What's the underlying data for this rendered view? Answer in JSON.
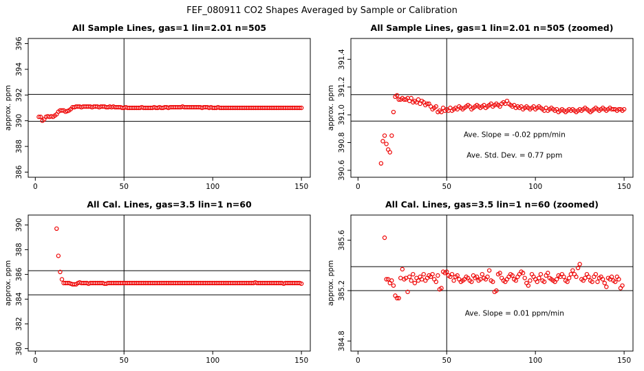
{
  "figure": {
    "title": "FEF_080911  CO2 Shapes Averaged by Sample or Calibration"
  },
  "colors": {
    "points": "#ee0000",
    "lines": "#000000",
    "frame": "#000000"
  },
  "chart_data": [
    {
      "type": "scatter",
      "title": "All Sample Lines, gas=1 lin=2.01 n=505",
      "ylabel": "approx. ppm",
      "xlim": [
        -4,
        155
      ],
      "ylim": [
        385.6,
        396.4
      ],
      "xticks": [
        0,
        50,
        100,
        150
      ],
      "yticks": [
        386,
        388,
        390,
        392,
        394,
        396
      ],
      "hlines": [
        389.95,
        392.05
      ],
      "vline": 50,
      "annotations": [],
      "x_start": 2,
      "x_step": 1,
      "values": [
        390.3,
        390.3,
        390.0,
        390.1,
        390.3,
        390.35,
        390.3,
        390.35,
        390.3,
        390.4,
        390.5,
        390.7,
        390.8,
        390.8,
        390.8,
        390.7,
        390.75,
        390.8,
        390.9,
        391.05,
        391.05,
        391.1,
        391.1,
        391.1,
        391.05,
        391.1,
        391.1,
        391.1,
        391.1,
        391.1,
        391.05,
        391.1,
        391.1,
        391.1,
        391.05,
        391.1,
        391.1,
        391.1,
        391.05,
        391.05,
        391.1,
        391.05,
        391.1,
        391.05,
        391.05,
        391.05,
        391.05,
        391.0,
        391.0,
        391.05,
        391.0,
        391.0,
        391.0,
        391.0,
        391.0,
        391.0,
        391.0,
        391.0,
        391.05,
        391.0,
        391.0,
        391.0,
        391.0,
        391.0,
        391.0,
        391.05,
        391.0,
        391.0,
        391.05,
        391.0,
        391.0,
        391.05,
        391.05,
        391.0,
        391.05,
        391.05,
        391.05,
        391.05,
        391.05,
        391.05,
        391.05,
        391.1,
        391.05,
        391.05,
        391.05,
        391.05,
        391.05,
        391.05,
        391.05,
        391.05,
        391.05,
        391.05,
        391.0,
        391.05,
        391.05,
        391.05,
        391.0,
        391.05,
        391.0,
        391.0,
        391.0,
        391.05,
        391.0,
        391.0,
        391.0,
        391.0,
        391.0,
        391.0,
        391.0,
        391.0,
        391.0,
        391.0,
        391.0,
        391.0,
        391.0,
        391.0,
        391.0,
        391.0,
        391.0,
        391.0,
        391.0,
        391.0,
        391.0,
        391.0,
        391.0,
        391.0,
        391.0,
        391.0,
        391.0,
        391.0,
        391.0,
        391.0,
        391.0,
        391.0,
        391.0,
        391.0,
        391.0,
        391.0,
        391.0,
        391.0,
        391.0,
        391.0,
        391.0,
        391.0,
        391.0,
        391.0,
        391.0,
        391.0,
        391.0
      ]
    },
    {
      "type": "scatter",
      "title": "All Sample Lines, gas=1 lin=2.01 n=505 (zoomed)",
      "ylabel": "approx. ppm",
      "xlim": [
        -4,
        155
      ],
      "ylim": [
        390.55,
        391.55
      ],
      "xticks": [
        0,
        50,
        100,
        150
      ],
      "yticks": [
        390.6,
        390.8,
        391.0,
        391.2,
        391.4
      ],
      "hlines": [
        390.955,
        391.145
      ],
      "vline": 50,
      "annotations": [
        "Ave. Slope =  -0.02  ppm/min",
        "Ave. Std. Dev. =  0.77  ppm"
      ],
      "x_start": 13,
      "x_step": 1,
      "values": [
        390.65,
        390.81,
        390.85,
        390.79,
        390.75,
        390.73,
        390.85,
        391.02,
        391.13,
        391.14,
        391.11,
        391.11,
        391.12,
        391.11,
        391.11,
        391.12,
        391.1,
        391.12,
        391.09,
        391.1,
        391.09,
        391.11,
        391.08,
        391.1,
        391.09,
        391.07,
        391.08,
        391.08,
        391.06,
        391.04,
        391.05,
        391.06,
        391.02,
        391.03,
        391.02,
        391.05,
        391.03,
        391.04,
        391.03,
        391.05,
        391.03,
        391.04,
        391.05,
        391.04,
        391.06,
        391.05,
        391.04,
        391.05,
        391.06,
        391.07,
        391.06,
        391.04,
        391.05,
        391.06,
        391.07,
        391.06,
        391.05,
        391.06,
        391.07,
        391.05,
        391.06,
        391.07,
        391.08,
        391.06,
        391.07,
        391.08,
        391.07,
        391.06,
        391.08,
        391.09,
        391.08,
        391.1,
        391.08,
        391.07,
        391.06,
        391.07,
        391.05,
        391.06,
        391.05,
        391.06,
        391.04,
        391.05,
        391.06,
        391.05,
        391.04,
        391.05,
        391.06,
        391.04,
        391.05,
        391.06,
        391.05,
        391.04,
        391.03,
        391.05,
        391.03,
        391.04,
        391.05,
        391.04,
        391.03,
        391.04,
        391.02,
        391.03,
        391.04,
        391.03,
        391.02,
        391.03,
        391.04,
        391.03,
        391.04,
        391.03,
        391.02,
        391.03,
        391.04,
        391.03,
        391.04,
        391.05,
        391.04,
        391.03,
        391.02,
        391.03,
        391.04,
        391.05,
        391.04,
        391.03,
        391.04,
        391.05,
        391.04,
        391.03,
        391.04,
        391.05,
        391.04,
        391.04,
        391.04,
        391.03,
        391.04,
        391.04,
        391.03,
        391.04
      ]
    },
    {
      "type": "scatter",
      "title": "All Cal. Lines, gas=3.5 lin=1 n=60",
      "ylabel": "approx. ppm",
      "xlim": [
        -4,
        155
      ],
      "ylim": [
        379.8,
        390.8
      ],
      "xticks": [
        0,
        50,
        100,
        150
      ],
      "yticks": [
        380,
        382,
        384,
        386,
        388,
        390
      ],
      "hlines": [
        384.35,
        386.3
      ],
      "vline": 50,
      "annotations": [],
      "x_start": 12,
      "x_step": 1,
      "values": [
        389.7,
        387.5,
        386.2,
        385.6,
        385.3,
        385.3,
        385.3,
        385.3,
        385.25,
        385.2,
        385.2,
        385.2,
        385.3,
        385.35,
        385.3,
        385.3,
        385.3,
        385.3,
        385.25,
        385.3,
        385.3,
        385.3,
        385.3,
        385.3,
        385.3,
        385.3,
        385.3,
        385.25,
        385.25,
        385.3,
        385.3,
        385.3,
        385.3,
        385.3,
        385.3,
        385.3,
        385.3,
        385.3,
        385.3,
        385.3,
        385.3,
        385.3,
        385.3,
        385.3,
        385.3,
        385.3,
        385.3,
        385.3,
        385.3,
        385.3,
        385.3,
        385.3,
        385.3,
        385.3,
        385.3,
        385.3,
        385.3,
        385.3,
        385.3,
        385.3,
        385.3,
        385.3,
        385.3,
        385.3,
        385.3,
        385.3,
        385.3,
        385.3,
        385.3,
        385.3,
        385.3,
        385.3,
        385.3,
        385.3,
        385.3,
        385.3,
        385.3,
        385.3,
        385.3,
        385.3,
        385.3,
        385.3,
        385.3,
        385.3,
        385.3,
        385.3,
        385.3,
        385.3,
        385.3,
        385.3,
        385.3,
        385.3,
        385.3,
        385.3,
        385.3,
        385.3,
        385.3,
        385.3,
        385.3,
        385.3,
        385.3,
        385.3,
        385.3,
        385.3,
        385.3,
        385.3,
        385.3,
        385.3,
        385.3,
        385.3,
        385.3,
        385.3,
        385.35,
        385.3,
        385.3,
        385.3,
        385.3,
        385.3,
        385.3,
        385.3,
        385.3,
        385.3,
        385.3,
        385.3,
        385.3,
        385.3,
        385.3,
        385.3,
        385.25,
        385.3,
        385.3,
        385.3,
        385.3,
        385.3,
        385.3,
        385.3,
        385.3,
        385.3,
        385.25
      ]
    },
    {
      "type": "scatter",
      "title": "All Cal. Lines, gas=3.5 lin=1 n=60 (zoomed)",
      "ylabel": "approx. ppm",
      "xlim": [
        -4,
        155
      ],
      "ylim": [
        384.72,
        385.8
      ],
      "xticks": [
        0,
        50,
        100,
        150
      ],
      "yticks": [
        384.8,
        385.2,
        385.6
      ],
      "hlines": [
        385.2,
        385.39
      ],
      "vline": 50,
      "annotations": [
        "Ave. Slope =  0.01  ppm/min"
      ],
      "x_start": 15,
      "x_step": 1,
      "values": [
        385.62,
        385.29,
        385.29,
        385.26,
        385.28,
        385.24,
        385.16,
        385.14,
        385.14,
        385.3,
        385.37,
        385.29,
        385.3,
        385.19,
        385.31,
        385.28,
        385.33,
        385.26,
        385.3,
        385.28,
        385.31,
        385.29,
        385.33,
        385.28,
        385.3,
        385.32,
        385.31,
        385.33,
        385.29,
        385.27,
        385.32,
        385.21,
        385.22,
        385.35,
        385.34,
        385.35,
        385.32,
        385.31,
        385.33,
        385.28,
        385.31,
        385.32,
        385.29,
        385.27,
        385.28,
        385.29,
        385.31,
        385.3,
        385.28,
        385.27,
        385.32,
        385.3,
        385.31,
        385.28,
        385.29,
        385.33,
        385.3,
        385.29,
        385.31,
        385.36,
        385.28,
        385.27,
        385.19,
        385.2,
        385.33,
        385.34,
        385.3,
        385.28,
        385.27,
        385.29,
        385.31,
        385.33,
        385.32,
        385.29,
        385.28,
        385.31,
        385.33,
        385.35,
        385.34,
        385.3,
        385.26,
        385.24,
        385.28,
        385.33,
        385.31,
        385.29,
        385.27,
        385.3,
        385.33,
        385.28,
        385.27,
        385.32,
        385.34,
        385.3,
        385.29,
        385.28,
        385.27,
        385.29,
        385.32,
        385.31,
        385.33,
        385.31,
        385.28,
        385.27,
        385.3,
        385.33,
        385.36,
        385.33,
        385.31,
        385.38,
        385.41,
        385.29,
        385.28,
        385.3,
        385.33,
        385.31,
        385.28,
        385.27,
        385.31,
        385.33,
        385.27,
        385.3,
        385.31,
        385.29,
        385.26,
        385.23,
        385.3,
        385.29,
        385.31,
        385.28,
        385.27,
        385.31,
        385.29,
        385.22,
        385.24
      ]
    }
  ]
}
